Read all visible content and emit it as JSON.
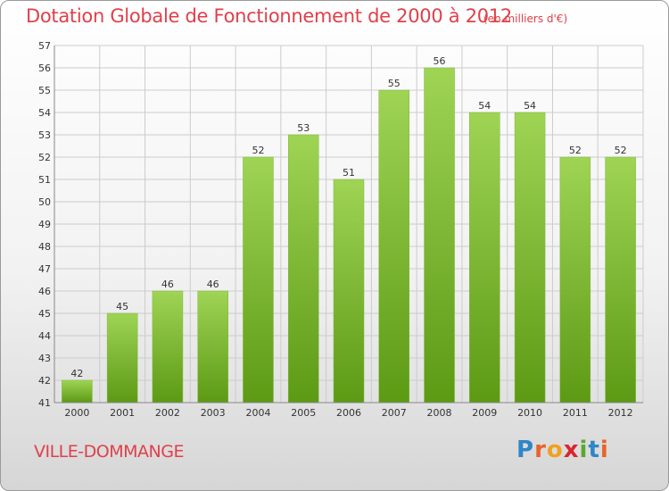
{
  "header": {
    "title": "Dotation Globale de Fonctionnement de 2000 à 2012",
    "unit": "(en milliers d'€)"
  },
  "footer": {
    "commune": "VILLE-DOMMANGE",
    "logo": {
      "letters": [
        "P",
        "r",
        "o",
        "x",
        "i",
        "t",
        "i"
      ],
      "colors": [
        "#2f86c8",
        "#e8632a",
        "#f0a020",
        "#d9262e",
        "#5aa832",
        "#2f86c8",
        "#e8632a"
      ]
    }
  },
  "colors": {
    "bar_top": "#9fd455",
    "bar_bottom": "#5c9a14",
    "grid": "#cccccc",
    "axis": "#888888",
    "accent": "#e0404a"
  },
  "chart_data": {
    "type": "bar",
    "title": "Dotation Globale de Fonctionnement de 2000 à 2012",
    "subtitle": "(en milliers d'€)",
    "xlabel": "",
    "ylabel": "",
    "categories": [
      "2000",
      "2001",
      "2002",
      "2003",
      "2004",
      "2005",
      "2006",
      "2007",
      "2008",
      "2009",
      "2010",
      "2011",
      "2012"
    ],
    "values": [
      42,
      45,
      46,
      46,
      52,
      53,
      51,
      55,
      56,
      54,
      54,
      52,
      52
    ],
    "ylim": [
      41,
      57
    ],
    "yticks": [
      41,
      42,
      43,
      44,
      45,
      46,
      47,
      48,
      49,
      50,
      51,
      52,
      53,
      54,
      55,
      56,
      57
    ],
    "grid": true,
    "data_labels": true
  }
}
